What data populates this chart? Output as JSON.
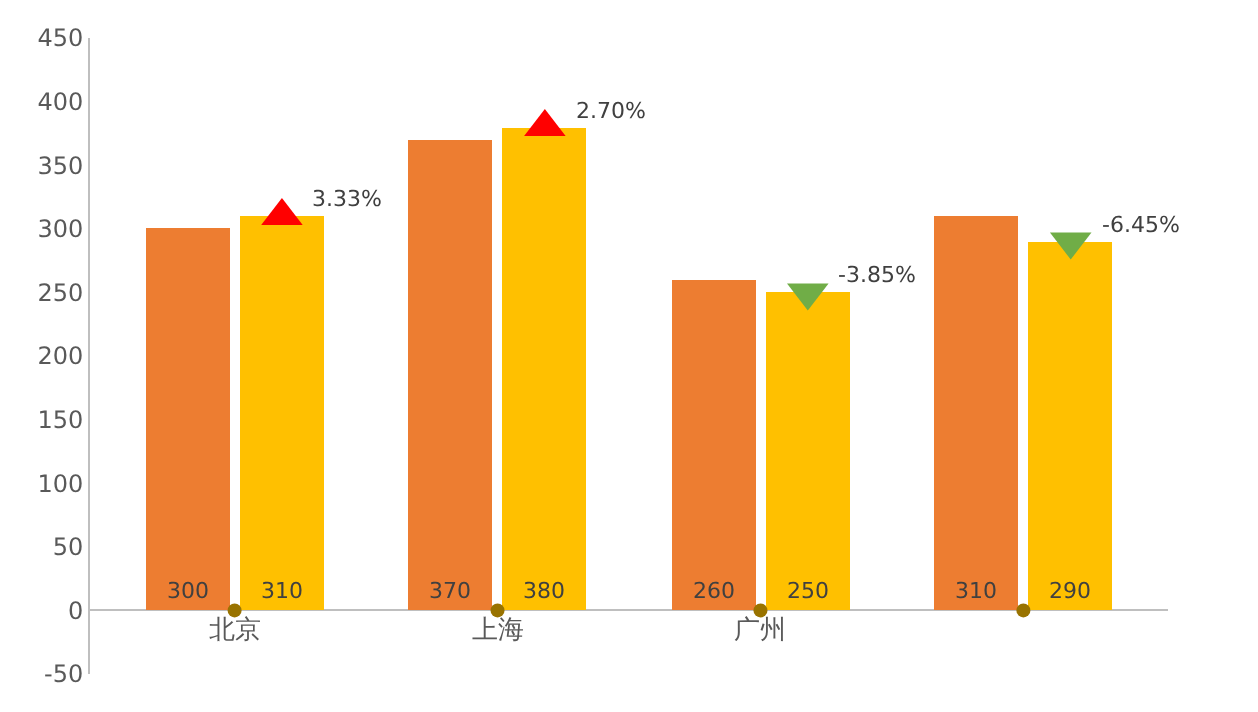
{
  "chart_data": {
    "type": "bar",
    "categories": [
      "北京",
      "上海",
      "广州",
      null
    ],
    "series": [
      {
        "color": "#ed7d31",
        "values": [
          300,
          370,
          260,
          310
        ],
        "value_labels": [
          "300",
          "370",
          "260",
          "310"
        ]
      },
      {
        "color": "#ffc000",
        "values": [
          310,
          380,
          250,
          290
        ],
        "value_labels": [
          "310",
          "380",
          "250",
          "290"
        ]
      },
      {
        "type": "scatter",
        "marker": "triangle",
        "color": "#ff0000",
        "values": [
          310,
          380,
          null,
          null
        ]
      },
      {
        "type": "scatter",
        "marker": "triangle-down",
        "color": "#70ad47",
        "values": [
          null,
          null,
          250,
          290
        ]
      },
      {
        "type": "scatter",
        "marker": "circle",
        "color": "#997300",
        "values": [
          0,
          0,
          0,
          0
        ]
      }
    ],
    "annotations": [
      "3.33%",
      "2.70%",
      "-3.85%",
      "-6.45%"
    ],
    "ylim": [
      -50,
      450
    ],
    "yticks": [
      -50,
      0,
      50,
      100,
      150,
      200,
      250,
      300,
      350,
      400,
      450
    ]
  }
}
